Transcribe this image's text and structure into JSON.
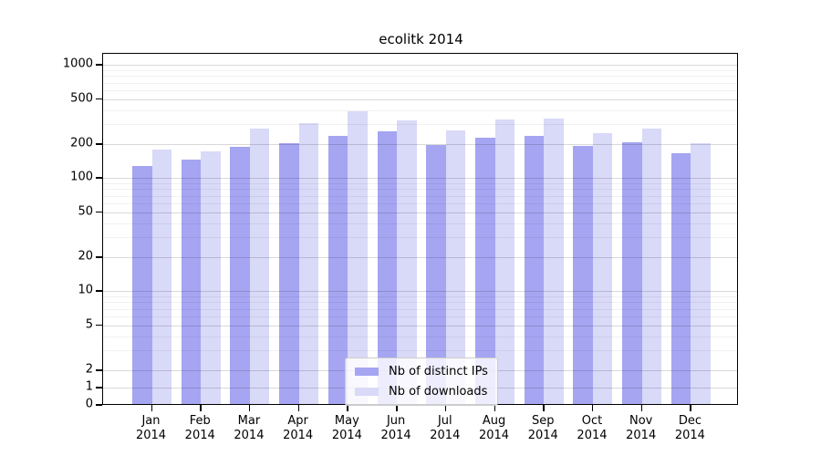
{
  "title": "ecolitk 2014",
  "chart_data": {
    "type": "bar",
    "title": "ecolitk 2014",
    "categories": [
      "Jan",
      "Feb",
      "Mar",
      "Apr",
      "May",
      "Jun",
      "Jul",
      "Aug",
      "Sep",
      "Oct",
      "Nov",
      "Dec"
    ],
    "x_year_label": "2014",
    "series": [
      {
        "name": "Nb of distinct IPs",
        "color": "#a5a5f2",
        "values": [
          126,
          143,
          186,
          201,
          230,
          253,
          193,
          225,
          232,
          190,
          205,
          163
        ]
      },
      {
        "name": "Nb of downloads",
        "color": "#d9d9f8",
        "values": [
          176,
          168,
          270,
          302,
          385,
          320,
          258,
          327,
          333,
          246,
          268,
          200
        ]
      }
    ],
    "y_ticks": [
      0,
      1,
      2,
      5,
      10,
      20,
      50,
      100,
      200,
      500,
      1000
    ],
    "y_minor_gridlines": [
      3,
      4,
      6,
      7,
      8,
      9,
      30,
      40,
      60,
      70,
      80,
      90,
      300,
      400,
      600,
      700,
      800,
      900
    ],
    "y_scale": "log above 2, linear 0-2 (symlog)",
    "ylim": [
      0,
      1250
    ],
    "grid": true,
    "legend_position": "lower center",
    "legend_labels": [
      "Nb of distinct IPs",
      "Nb of downloads"
    ]
  },
  "colors": {
    "bar_distinct_ips": "#a5a5f2",
    "bar_downloads": "#d9d9f8",
    "grid_major": "#d9d9d9",
    "grid_minor": "#f1f1f1",
    "axis": "#000000",
    "legend_border": "#cccccc"
  }
}
